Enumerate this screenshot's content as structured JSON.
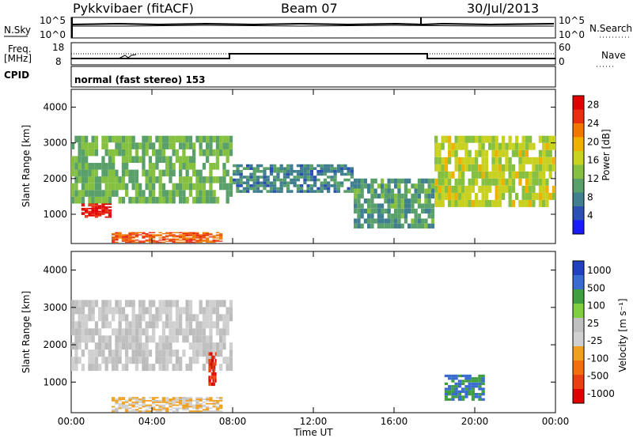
{
  "header": {
    "station": "Pykkvibaer (fitACF)",
    "beam": "Beam 07",
    "date": "30/Jul/2013"
  },
  "sky_panel": {
    "left_label": "N.Sky",
    "left_ticks": [
      "10^5",
      "10^0"
    ],
    "right_label": "N.Search",
    "right_ticks": [
      "10^5",
      "10^0"
    ]
  },
  "freq_panel": {
    "left_label_1": "Freq.",
    "left_label_2": "[MHz]",
    "left_ticks": [
      "18",
      "8"
    ],
    "right_label": "Nave",
    "right_ticks": [
      "60",
      "0"
    ]
  },
  "cpid": {
    "label": "CPID",
    "text": "normal (fast stereo) 153"
  },
  "colors": {
    "power_scale": [
      "#1a1aff",
      "#2b4fb3",
      "#3f7f8f",
      "#5aa06a",
      "#86c040",
      "#c8d020",
      "#f0b000",
      "#f07800",
      "#e83010",
      "#e00000"
    ],
    "velocity_scale": [
      "#2040c0",
      "#3a6bd0",
      "#3f9f40",
      "#7fcf40",
      "#c0c0c0",
      "#d0d0d0",
      "#f0a020",
      "#f07010",
      "#e84010",
      "#e00000"
    ],
    "ground_scatter": "#bbbbbb"
  },
  "power_colorbar": {
    "title": "Power [dB]",
    "ticks": [
      "28",
      "24",
      "20",
      "16",
      "12",
      "8",
      "4"
    ]
  },
  "velocity_colorbar": {
    "title": "Velocity [m s⁻¹]",
    "ticks": [
      "1000",
      "500",
      "100",
      "25",
      "-25",
      "-100",
      "-500",
      "-1000"
    ]
  },
  "chart_data": [
    {
      "type": "heatmap",
      "name": "",
      "xlabel": "Time UT",
      "ylabel": "Slant Range [km]",
      "xlim": [
        "00:00",
        "24:00"
      ],
      "ylim": [
        180,
        4500
      ],
      "x_ticks": [
        "00:00",
        "04:00",
        "08:00",
        "12:00",
        "16:00",
        "20:00",
        "00:00"
      ],
      "y_ticks": [
        1000,
        2000,
        3000,
        4000
      ],
      "colorbar_range_db": [
        0,
        30
      ],
      "scatter_bands_approx": [
        {
          "time_range_h": [
            0,
            8
          ],
          "range_km": [
            1300,
            3200
          ],
          "power_db": 12
        },
        {
          "time_range_h": [
            0.5,
            2
          ],
          "range_km": [
            900,
            1300
          ],
          "power_db": 28
        },
        {
          "time_range_h": [
            2,
            7.5
          ],
          "range_km": [
            200,
            500
          ],
          "power_db": 24
        },
        {
          "time_range_h": [
            8,
            14
          ],
          "range_km": [
            1600,
            2400
          ],
          "power_db": 8
        },
        {
          "time_range_h": [
            14,
            18
          ],
          "range_km": [
            600,
            2000
          ],
          "power_db": 10
        },
        {
          "time_range_h": [
            18,
            24
          ],
          "range_km": [
            1200,
            3200
          ],
          "power_db": 16
        }
      ]
    },
    {
      "type": "heatmap",
      "name": "",
      "xlabel": "Time UT",
      "ylabel": "Slant Range [km]",
      "xlim": [
        "00:00",
        "24:00"
      ],
      "ylim": [
        180,
        4500
      ],
      "x_ticks": [
        "00:00",
        "04:00",
        "08:00",
        "12:00",
        "16:00",
        "20:00",
        "00:00"
      ],
      "y_ticks": [
        1000,
        2000,
        3000,
        4000
      ],
      "colorbar_range_ms": [
        -1000,
        1000
      ],
      "scatter_bands_approx": [
        {
          "time_range_h": [
            0,
            8
          ],
          "range_km": [
            1300,
            3200
          ],
          "velocity_ms": 0
        },
        {
          "time_range_h": [
            2,
            7.5
          ],
          "range_km": [
            200,
            600
          ],
          "velocity_ms": -200
        },
        {
          "time_range_h": [
            6.8,
            7.2
          ],
          "range_km": [
            900,
            1800
          ],
          "velocity_ms": -800
        },
        {
          "time_range_h": [
            18.5,
            20.5
          ],
          "range_km": [
            500,
            1200
          ],
          "velocity_ms": 600
        }
      ]
    }
  ]
}
